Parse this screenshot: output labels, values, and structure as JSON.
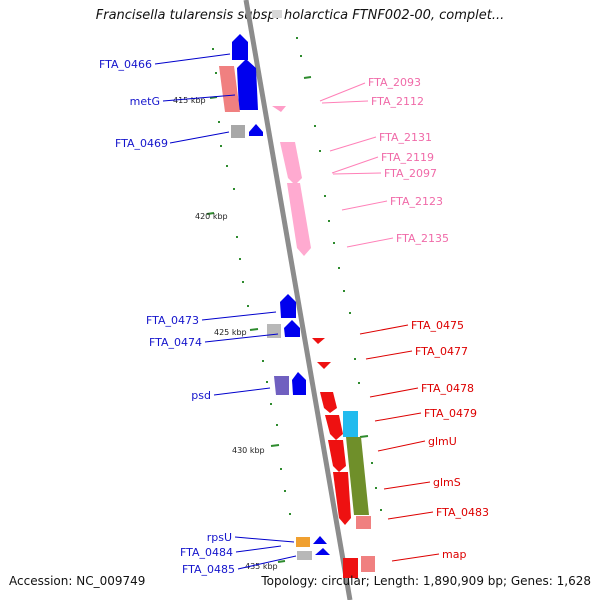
{
  "title": "Francisella tularensis subsp. holarctica FTNF002-00, complet...",
  "footer": {
    "accession": "Accession: NC_009749",
    "stats": "Topology: circular; Length: 1,890,909 bp; Genes: 1,628"
  },
  "colors": {
    "backbone": "#8c8c8c",
    "forward_cds": "#0000ee",
    "forward_other": "#7060c0",
    "reverse_upper": "#ff9ec8",
    "reverse_lower": "#ee1111",
    "pseudo_gray": "#a0a0a0",
    "cyan_gene": "#22bbee",
    "olive_gene": "#6f8f2a",
    "tick": "#2e8b2e"
  },
  "ticks": [
    "415 kbp",
    "420 kbp",
    "425 kbp",
    "430 kbp",
    "435 kbp"
  ],
  "labels": {
    "left": [
      "FTA_0466",
      "metG",
      "FTA_0469",
      "FTA_0473",
      "FTA_0474",
      "psd",
      "rpsU",
      "FTA_0484",
      "FTA_0485"
    ],
    "right_pink": [
      "FTA_2093",
      "FTA_2112",
      "FTA_2131",
      "FTA_2119",
      "FTA_2097",
      "FTA_2123",
      "FTA_2135"
    ],
    "right_red": [
      "FTA_0475",
      "FTA_0477",
      "FTA_0478",
      "FTA_0479",
      "glmU",
      "glmS",
      "FTA_0483",
      "map"
    ]
  }
}
